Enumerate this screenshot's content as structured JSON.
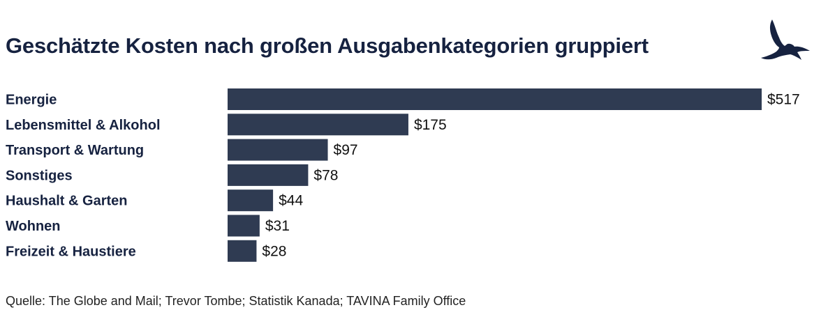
{
  "chart_data": {
    "type": "bar",
    "orientation": "horizontal",
    "title": "Geschätzte Kosten nach großen Ausgabenkategorien gruppiert",
    "categories": [
      "Energie",
      "Lebensmittel & Alkohol",
      "Transport & Wartung",
      "Sonstiges",
      "Haushalt & Garten",
      "Wohnen",
      "Freizeit & Haustiere"
    ],
    "values": [
      517,
      175,
      97,
      78,
      44,
      31,
      28
    ],
    "value_labels": [
      "$517",
      "$175",
      "$97",
      "$78",
      "$44",
      "$31",
      "$28"
    ],
    "xlim": [
      0,
      517
    ],
    "grid": false,
    "legend": "none",
    "bar_color": "#2f3b52"
  },
  "source": "Quelle: The Globe and Mail; Trevor Tombe; Statistik Kanada; TAVINA Family Office",
  "logo": {
    "icon": "eagle-icon",
    "color": "#162240"
  }
}
